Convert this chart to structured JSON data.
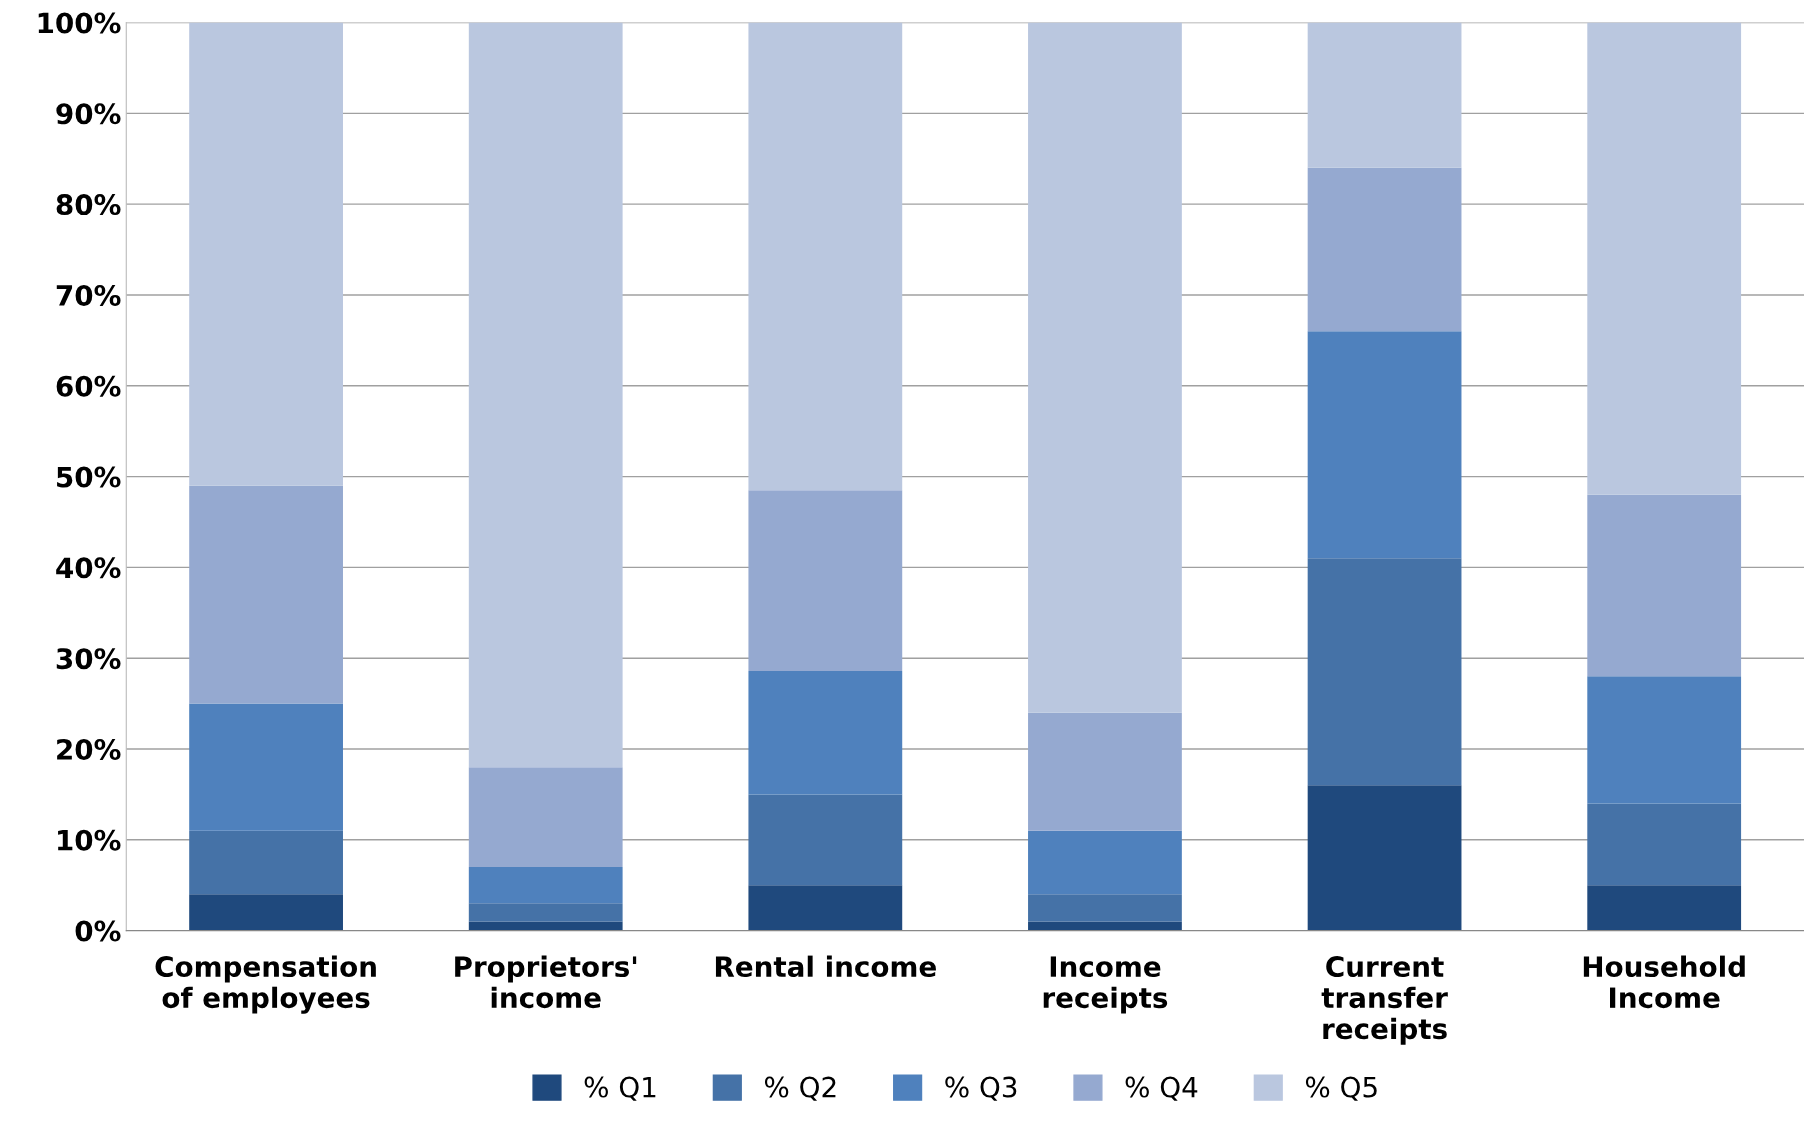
{
  "chart_data": {
    "type": "bar",
    "stacked": true,
    "categories": [
      "Compensation\nof employees",
      "Proprietors'\nincome",
      "Rental income",
      "Income\nreceipts",
      "Current\ntransfer\nreceipts",
      "Household\nIncome"
    ],
    "series": [
      {
        "name": "% Q1",
        "color": "#1f497d",
        "values": [
          4,
          1,
          5,
          1,
          16,
          5
        ]
      },
      {
        "name": "% Q2",
        "color": "#4572a7",
        "values": [
          7,
          2,
          10,
          3,
          25,
          9
        ]
      },
      {
        "name": "% Q3",
        "color": "#4f81bd",
        "values": [
          14,
          4,
          13.6,
          7,
          25,
          14
        ]
      },
      {
        "name": "% Q4",
        "color": "#95a9d0",
        "values": [
          24,
          11,
          19.9,
          13,
          18,
          20
        ]
      },
      {
        "name": "% Q5",
        "color": "#bac7df",
        "values": [
          51,
          82,
          51.5,
          76,
          16,
          52
        ]
      }
    ],
    "ylim": [
      0,
      100
    ],
    "yticks": [
      {
        "value": 0,
        "label": "0%"
      },
      {
        "value": 10,
        "label": "10%"
      },
      {
        "value": 20,
        "label": "20%"
      },
      {
        "value": 30,
        "label": "30%"
      },
      {
        "value": 40,
        "label": "40%"
      },
      {
        "value": 50,
        "label": "50%"
      },
      {
        "value": 60,
        "label": "60%"
      },
      {
        "value": 70,
        "label": "70%"
      },
      {
        "value": 80,
        "label": "80%"
      },
      {
        "value": 90,
        "label": "90%"
      },
      {
        "value": 100,
        "label": "100%"
      }
    ],
    "grid": "y",
    "legend": "bottom"
  }
}
